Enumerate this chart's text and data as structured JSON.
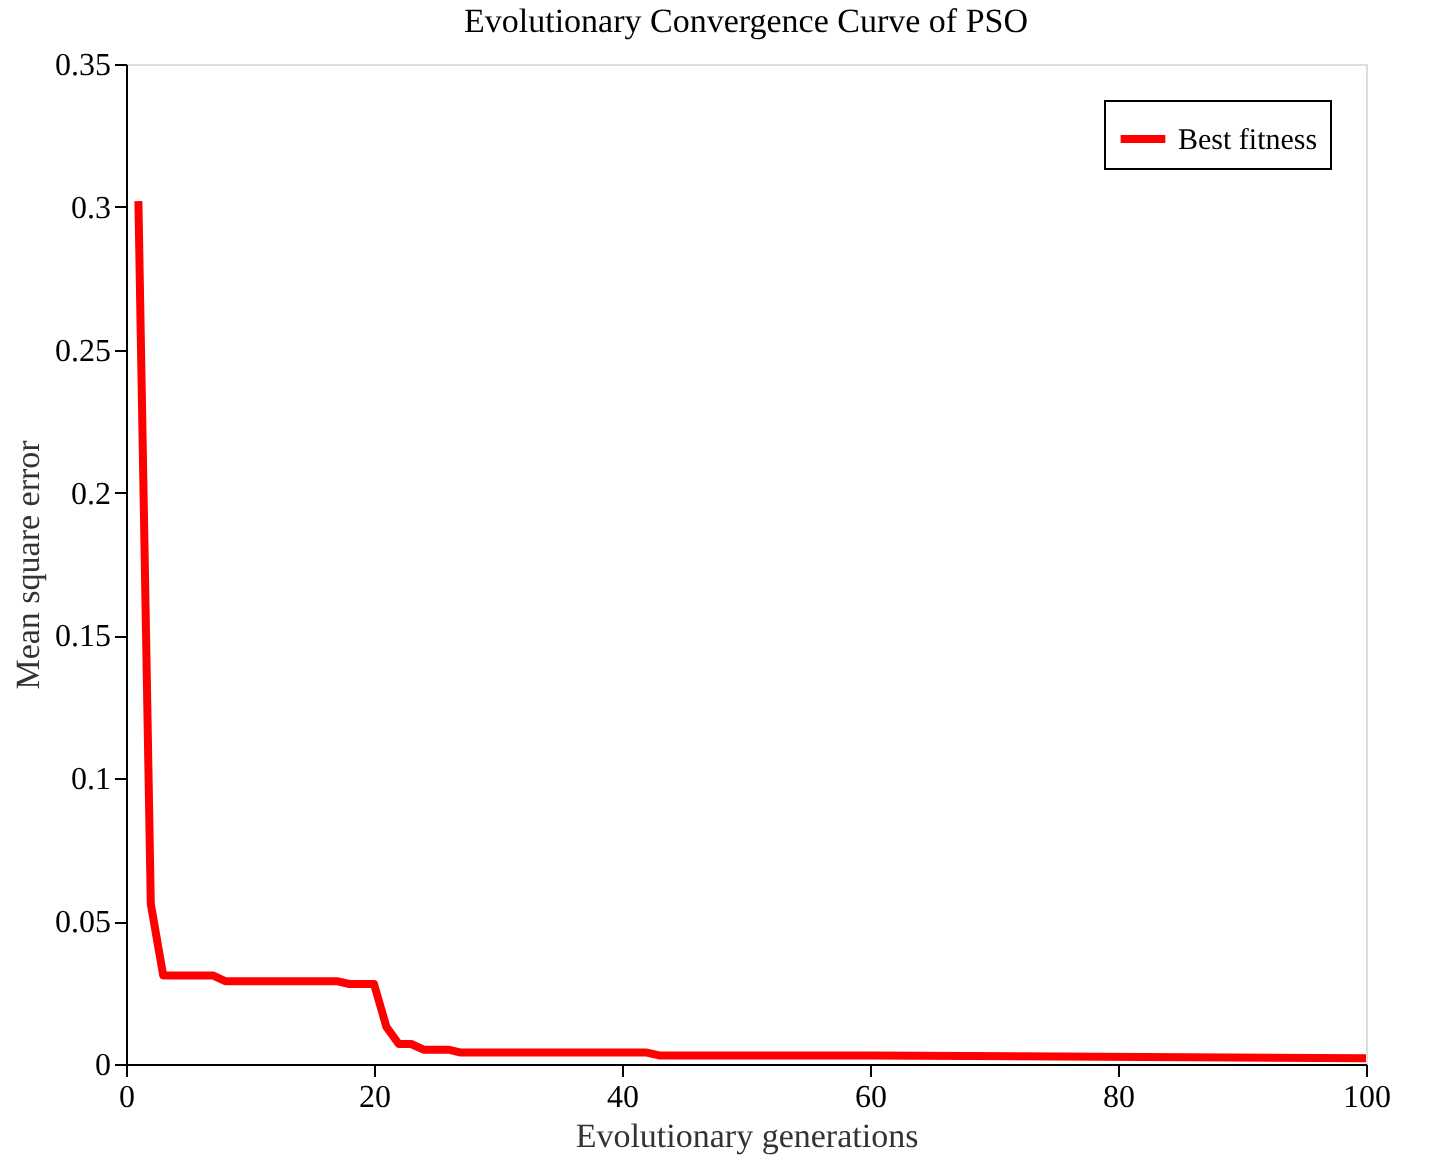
{
  "chart_data": {
    "type": "line",
    "title": "Evolutionary Convergence Curve of PSO",
    "xlabel": "Evolutionary generations",
    "ylabel": "Mean square error",
    "x": [
      1,
      2,
      3,
      7,
      8,
      17,
      18,
      20,
      21,
      22,
      23,
      24,
      26,
      27,
      42,
      43,
      60,
      100
    ],
    "series": [
      {
        "name": "Best fitness",
        "color": "#ff0000",
        "values": [
          0.302,
          0.056,
          0.031,
          0.031,
          0.029,
          0.029,
          0.028,
          0.028,
          0.013,
          0.007,
          0.007,
          0.005,
          0.005,
          0.004,
          0.004,
          0.003,
          0.003,
          0.002
        ]
      }
    ],
    "xlim": [
      0,
      100
    ],
    "xticks": [
      0,
      20,
      40,
      60,
      80,
      100
    ],
    "ylim": [
      0,
      0.35
    ],
    "yticks": [
      0,
      0.05,
      0.1,
      0.15,
      0.2,
      0.25,
      0.3,
      0.35
    ],
    "grid": false,
    "legend": "top right",
    "marker": "none",
    "line_style": "solid"
  }
}
